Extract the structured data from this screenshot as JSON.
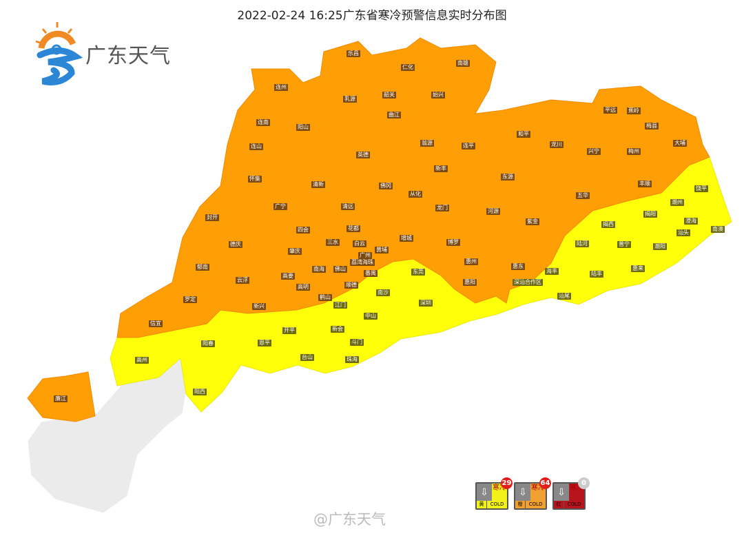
{
  "title": "2022-02-24 16:25广东省寒冷预警信息实时分布图",
  "logo": {
    "text": "广东天气"
  },
  "colors": {
    "orange": "#FF9E05",
    "yellow": "#FFFF0A",
    "grey": "#EBEBEB",
    "red": "#C8141E"
  },
  "regions": {
    "orange_warning": [
      "乐昌",
      "仁化",
      "南雄",
      "连州",
      "乳源",
      "韶关",
      "始兴",
      "曲江",
      "连南",
      "阳山",
      "翁源",
      "连平",
      "和平",
      "龙川",
      "平远",
      "蕉岭",
      "梅县",
      "连山",
      "英德",
      "兴宁",
      "梅州",
      "大埔",
      "新丰",
      "东源",
      "怀集",
      "清新",
      "佛冈",
      "从化",
      "丰顺",
      "五华",
      "广宁",
      "清远",
      "龙门",
      "河源",
      "封开",
      "四会",
      "花都",
      "增城",
      "紫金",
      "德庆",
      "三水",
      "白云",
      "黄埔",
      "博罗",
      "肇庆",
      "广州",
      "荔湾海珠",
      "惠州",
      "南海",
      "佛山",
      "番禺",
      "郁南",
      "高要",
      "惠东",
      "云浮",
      "顺德",
      "高明",
      "惠阳",
      "鹤山",
      "罗定",
      "新兴",
      "信宜",
      "廉江"
    ],
    "yellow_warning": [
      "饶平",
      "潮州",
      "揭西",
      "揭阳",
      "澄海",
      "南澳",
      "汕头",
      "陆河",
      "普宁",
      "潮阳",
      "东莞",
      "惠来",
      "海丰",
      "陆丰",
      "深汕合作区",
      "南沙",
      "深圳",
      "江门",
      "汕尾",
      "中山",
      "开平",
      "新会",
      "阳春",
      "恩平",
      "斗门",
      "高州",
      "台山",
      "珠海",
      "阳西"
    ]
  },
  "legend": [
    {
      "level": "黄",
      "label": "COLD",
      "icon_text": "寒冷",
      "count": "29",
      "color": "#F2F21A"
    },
    {
      "level": "橙",
      "label": "COLD",
      "icon_text": "寒冷",
      "count": "64",
      "color": "#F0A030"
    },
    {
      "level": "红",
      "label": "COLD",
      "icon_text": "寒冷",
      "count": "0",
      "color": "#B8141E"
    }
  ],
  "watermark": "@广东天气"
}
